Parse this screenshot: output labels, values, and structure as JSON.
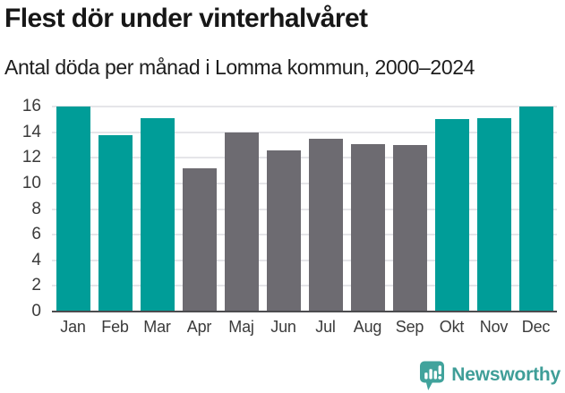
{
  "header": {
    "title": "Flest dör under vinterhalvåret",
    "subtitle": "Antal döda per månad i Lomma kommun, 2000–2024"
  },
  "chart_data": {
    "type": "bar",
    "title": "Flest dör under vinterhalvåret",
    "subtitle": "Antal döda per månad i Lomma kommun, 2000–2024",
    "categories": [
      "Jan",
      "Feb",
      "Mar",
      "Apr",
      "Maj",
      "Jun",
      "Jul",
      "Aug",
      "Sep",
      "Okt",
      "Nov",
      "Dec"
    ],
    "values": [
      16.0,
      13.8,
      15.1,
      11.2,
      14.0,
      12.6,
      13.5,
      13.1,
      13.0,
      15.0,
      15.1,
      16.0
    ],
    "bar_colors": [
      "#009D98",
      "#009D98",
      "#009D98",
      "#6D6B71",
      "#6D6B71",
      "#6D6B71",
      "#6D6B71",
      "#6D6B71",
      "#6D6B71",
      "#009D98",
      "#009D98",
      "#009D98"
    ],
    "highlight_color": "#009D98",
    "base_color": "#6D6B71",
    "yticks": [
      0,
      2,
      4,
      6,
      8,
      10,
      12,
      14,
      16
    ],
    "ylim": [
      0,
      16
    ],
    "grid": true,
    "legend": "none",
    "xlabel": "",
    "ylabel": ""
  },
  "footer": {
    "brand": "Newsworthy",
    "brand_color": "#3F9E98",
    "logo_icon": "newsworthy-bar-chart-bubble-icon",
    "logo_color": "#41A39C"
  }
}
